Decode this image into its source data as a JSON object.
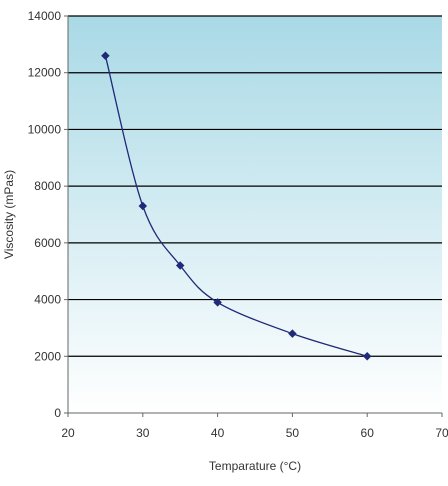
{
  "chart_data": {
    "type": "line",
    "xlabel": "Temparature (°C)",
    "ylabel": "Viscosity (mPas)",
    "xlim": [
      20,
      70
    ],
    "ylim": [
      0,
      14000
    ],
    "x_ticks": [
      "20",
      "30",
      "40",
      "50",
      "60",
      "70"
    ],
    "y_ticks": [
      "0",
      "2000",
      "4000",
      "6000",
      "8000",
      "10000",
      "12000",
      "14000"
    ],
    "grid": "horizontal",
    "smooth": true,
    "series": [
      {
        "x": [
          25,
          30,
          35,
          40,
          50,
          60
        ],
        "y": [
          12600,
          7300,
          5200,
          3900,
          2800,
          2000
        ]
      }
    ],
    "colors": {
      "line": "#1f2a78",
      "marker": "#1f2a78",
      "gradient_top": "#a9d9e6",
      "gradient_bottom": "#ffffff",
      "gridline": "#000000",
      "axis": "#666666",
      "text": "#333333"
    }
  }
}
